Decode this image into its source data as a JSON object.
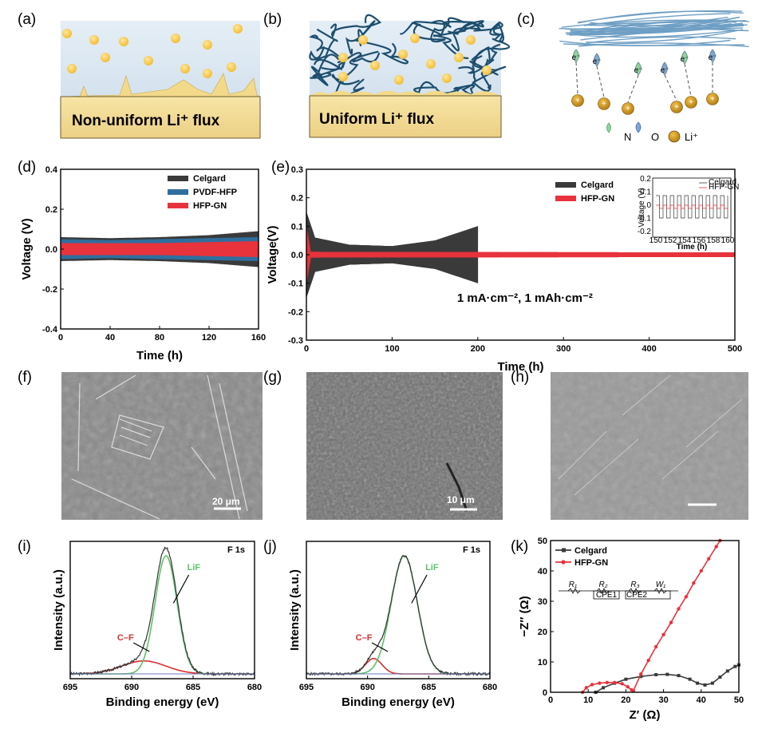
{
  "panels": {
    "a": {
      "label": "(a)",
      "text": "Non-uniform  Li⁺ flux"
    },
    "b": {
      "label": "(b)",
      "text": "Uniform  Li⁺ flux"
    },
    "c": {
      "label": "(c)",
      "electron": "e⁻",
      "legend": [
        "N",
        "O",
        "Li⁺"
      ]
    },
    "f": {
      "label": "(f)",
      "scale": "20 μm"
    },
    "g": {
      "label": "(g)",
      "scale": "10 μm"
    },
    "h": {
      "label": "(h)"
    }
  },
  "colors": {
    "celgard": "#3a3a3a",
    "pvdf": "#2f6f9f",
    "hfp": "#e8323c",
    "lif": "#5cc26a",
    "cf": "#d9302f",
    "li_ion": "#f5c542",
    "li_dark": "#c8900c",
    "nitrogen": "#8fd49a",
    "oxygen": "#7fa6cf",
    "fiber": "#1d4e6e",
    "electrode": "#f5dc8f"
  },
  "chart_data": [
    {
      "id": "d",
      "type": "line",
      "label": "(d)",
      "xlabel": "Time (h)",
      "ylabel": "Voltage (V)",
      "xlim": [
        0,
        160
      ],
      "ylim": [
        -0.4,
        0.4
      ],
      "xticks": [
        0,
        40,
        80,
        120,
        160
      ],
      "yticks": [
        -0.4,
        -0.2,
        0.0,
        0.2,
        0.4
      ],
      "series": [
        {
          "name": "Celgard",
          "envelope": [
            [
              0,
              0.06
            ],
            [
              40,
              0.055
            ],
            [
              80,
              0.06
            ],
            [
              120,
              0.07
            ],
            [
              160,
              0.09
            ]
          ]
        },
        {
          "name": "PVDF-HFP",
          "envelope": [
            [
              0,
              0.05
            ],
            [
              40,
              0.045
            ],
            [
              80,
              0.05
            ],
            [
              120,
              0.055
            ],
            [
              160,
              0.06
            ]
          ]
        },
        {
          "name": "HFP-GN",
          "envelope": [
            [
              0,
              0.03
            ],
            [
              40,
              0.03
            ],
            [
              80,
              0.03
            ],
            [
              120,
              0.035
            ],
            [
              160,
              0.04
            ]
          ]
        }
      ]
    },
    {
      "id": "e",
      "type": "line",
      "label": "(e)",
      "xlabel": "Time (h)",
      "ylabel": "Voltage(V)",
      "xlim": [
        0,
        500
      ],
      "ylim": [
        -0.3,
        0.3
      ],
      "xticks": [
        0,
        100,
        200,
        300,
        400,
        500
      ],
      "yticks": [
        -0.3,
        -0.2,
        -0.1,
        0.0,
        0.1,
        0.2,
        0.3
      ],
      "annotation": "1 mA·cm⁻², 1 mAh·cm⁻²",
      "series": [
        {
          "name": "Celgard",
          "envelope": [
            [
              0,
              0.15
            ],
            [
              10,
              0.06
            ],
            [
              50,
              0.035
            ],
            [
              100,
              0.03
            ],
            [
              150,
              0.05
            ],
            [
              200,
              0.1
            ]
          ]
        },
        {
          "name": "HFP-GN",
          "envelope": [
            [
              0,
              0.1
            ],
            [
              5,
              0.01
            ],
            [
              500,
              0.008
            ]
          ]
        }
      ],
      "inset": {
        "xlabel": "Time (h)",
        "ylabel": "Voltage (V)",
        "xticks": [
          150,
          152,
          154,
          156,
          158,
          160
        ],
        "yticks": [
          -0.2,
          -0.1,
          0.0,
          0.1,
          0.2
        ],
        "series": [
          "Celgard",
          "HFP-GN"
        ]
      }
    },
    {
      "id": "i",
      "type": "line",
      "label": "(i)",
      "title": "F 1s",
      "xlabel": "Binding energy (eV)",
      "ylabel": "Intensity (a.u.)",
      "xlim": [
        695,
        680
      ],
      "xticks": [
        695,
        690,
        685,
        680
      ],
      "peaks": [
        {
          "name": "LiF",
          "center": 687.2,
          "height": 1.0,
          "fwhm": 2.1
        },
        {
          "name": "C–F",
          "center": 689.0,
          "height": 0.11,
          "fwhm": 4.2
        }
      ]
    },
    {
      "id": "j",
      "type": "line",
      "label": "(j)",
      "title": "F 1s",
      "xlabel": "Binding energy (eV)",
      "ylabel": "Intensity (a.u.)",
      "xlim": [
        695,
        680
      ],
      "xticks": [
        695,
        690,
        685,
        680
      ],
      "peaks": [
        {
          "name": "LiF",
          "center": 687.0,
          "height": 1.0,
          "fwhm": 2.5
        },
        {
          "name": "C–F",
          "center": 689.5,
          "height": 0.13,
          "fwhm": 1.6
        }
      ]
    },
    {
      "id": "k",
      "type": "scatter",
      "label": "(k)",
      "xlabel": "Z′ (Ω)",
      "ylabel": "−Z″ (Ω)",
      "xlim": [
        0,
        50
      ],
      "ylim": [
        0,
        50
      ],
      "xticks": [
        0,
        10,
        20,
        30,
        40,
        50
      ],
      "yticks": [
        0,
        10,
        20,
        30,
        40,
        50
      ],
      "last_xtick": "50",
      "circuit": [
        "R₁",
        "R₂",
        "R₃",
        "W₁",
        "CPE1",
        "CPE2"
      ],
      "series": [
        {
          "name": "Celgard",
          "points": [
            [
              12,
              0
            ],
            [
              14,
              1.5
            ],
            [
              17,
              3
            ],
            [
              20,
              4.3
            ],
            [
              24,
              5.2
            ],
            [
              28,
              5.8
            ],
            [
              31,
              5.9
            ],
            [
              34,
              5.5
            ],
            [
              37,
              4.3
            ],
            [
              39,
              3
            ],
            [
              41,
              2.4
            ],
            [
              43,
              3
            ],
            [
              45,
              5
            ],
            [
              47,
              7
            ],
            [
              49,
              8.5
            ],
            [
              50,
              9
            ]
          ]
        },
        {
          "name": "HFP-GN",
          "points": [
            [
              8.5,
              0
            ],
            [
              9.5,
              1.5
            ],
            [
              11,
              2.5
            ],
            [
              13,
              3
            ],
            [
              15,
              3.2
            ],
            [
              17,
              3.2
            ],
            [
              19,
              2.8
            ],
            [
              20.5,
              1.8
            ],
            [
              21.5,
              0.8
            ],
            [
              22,
              0.5
            ],
            [
              24,
              6
            ],
            [
              26,
              10.5
            ],
            [
              28,
              15
            ],
            [
              30,
              19
            ],
            [
              32,
              23
            ],
            [
              34,
              27.5
            ],
            [
              36,
              31.5
            ],
            [
              38,
              36
            ],
            [
              40,
              40
            ],
            [
              42,
              44
            ],
            [
              44,
              48
            ],
            [
              45,
              50
            ]
          ]
        }
      ]
    }
  ]
}
